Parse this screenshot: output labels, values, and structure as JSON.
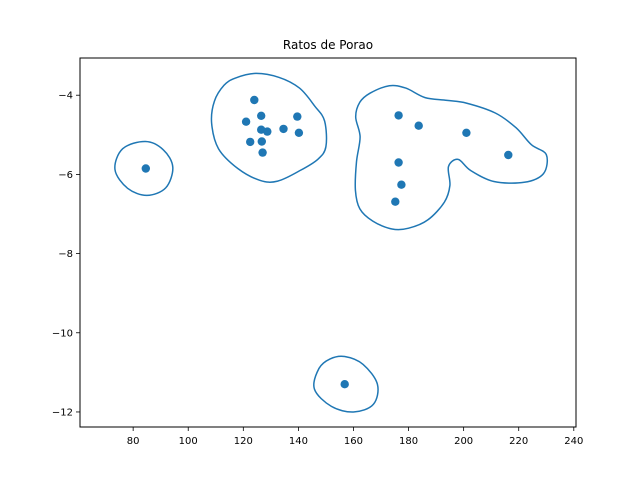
{
  "chart_data": {
    "type": "scatter",
    "title": "Ratos de Porao",
    "xlabel": "",
    "ylabel": "",
    "xlim": [
      60.7,
      240.8
    ],
    "ylim": [
      -12.38,
      -3.06
    ],
    "xticks": [
      80,
      100,
      120,
      140,
      160,
      180,
      200,
      220,
      240
    ],
    "yticks": [
      -12,
      -10,
      -8,
      -6,
      -4
    ],
    "grid": false,
    "color": "#1f77b4",
    "points": [
      {
        "x": 84.6,
        "y": -5.85
      },
      {
        "x": 124.0,
        "y": -4.12
      },
      {
        "x": 121.0,
        "y": -4.67
      },
      {
        "x": 126.5,
        "y": -4.52
      },
      {
        "x": 126.5,
        "y": -4.87
      },
      {
        "x": 128.7,
        "y": -4.92
      },
      {
        "x": 122.5,
        "y": -5.18
      },
      {
        "x": 126.7,
        "y": -5.17
      },
      {
        "x": 127.0,
        "y": -5.45
      },
      {
        "x": 134.6,
        "y": -4.85
      },
      {
        "x": 139.6,
        "y": -4.54
      },
      {
        "x": 140.2,
        "y": -4.95
      },
      {
        "x": 176.4,
        "y": -4.51
      },
      {
        "x": 183.7,
        "y": -4.77
      },
      {
        "x": 201.0,
        "y": -4.95
      },
      {
        "x": 216.2,
        "y": -5.51
      },
      {
        "x": 176.4,
        "y": -5.7
      },
      {
        "x": 177.4,
        "y": -6.26
      },
      {
        "x": 175.2,
        "y": -6.69
      },
      {
        "x": 156.8,
        "y": -11.3
      }
    ],
    "contours": [
      [
        [
          84.5,
          -5.17
        ],
        [
          91,
          -5.38
        ],
        [
          94.4,
          -5.82
        ],
        [
          91.8,
          -6.34
        ],
        [
          85,
          -6.53
        ],
        [
          78,
          -6.35
        ],
        [
          73.4,
          -5.88
        ],
        [
          76.2,
          -5.35
        ],
        [
          84.5,
          -5.17
        ]
      ],
      [
        [
          117,
          -3.57
        ],
        [
          124.5,
          -3.45
        ],
        [
          133,
          -3.55
        ],
        [
          140.4,
          -3.82
        ],
        [
          146,
          -4.28
        ],
        [
          149.5,
          -4.65
        ],
        [
          150,
          -5.3
        ],
        [
          147,
          -5.62
        ],
        [
          140.7,
          -5.9
        ],
        [
          132.5,
          -6.17
        ],
        [
          126,
          -6.15
        ],
        [
          118,
          -5.85
        ],
        [
          111,
          -5.35
        ],
        [
          108.5,
          -4.7
        ],
        [
          109.5,
          -4.15
        ],
        [
          113,
          -3.75
        ],
        [
          117,
          -3.57
        ]
      ],
      [
        [
          166,
          -3.95
        ],
        [
          173,
          -3.76
        ],
        [
          179,
          -3.82
        ],
        [
          186,
          -4.06
        ],
        [
          194,
          -4.13
        ],
        [
          201,
          -4.2
        ],
        [
          211.5,
          -4.45
        ],
        [
          219,
          -4.82
        ],
        [
          224.6,
          -5.25
        ],
        [
          230,
          -5.5
        ],
        [
          229,
          -5.98
        ],
        [
          222,
          -6.2
        ],
        [
          211,
          -6.18
        ],
        [
          202.5,
          -5.9
        ],
        [
          198,
          -5.62
        ],
        [
          194.5,
          -5.8
        ],
        [
          195,
          -6.28
        ],
        [
          193,
          -6.7
        ],
        [
          187,
          -7.15
        ],
        [
          180,
          -7.36
        ],
        [
          174,
          -7.38
        ],
        [
          167,
          -7.18
        ],
        [
          162.3,
          -6.87
        ],
        [
          160.7,
          -6.4
        ],
        [
          161.1,
          -5.68
        ],
        [
          162.4,
          -5.05
        ],
        [
          160.8,
          -4.55
        ],
        [
          162.3,
          -4.18
        ],
        [
          166,
          -3.95
        ]
      ],
      [
        [
          156.8,
          -10.6
        ],
        [
          163.5,
          -10.8
        ],
        [
          168.7,
          -11.3
        ],
        [
          167.2,
          -11.81
        ],
        [
          160,
          -12.0
        ],
        [
          152,
          -11.86
        ],
        [
          145.8,
          -11.42
        ],
        [
          147.5,
          -10.9
        ],
        [
          151.5,
          -10.66
        ],
        [
          156.8,
          -10.6
        ]
      ]
    ]
  }
}
